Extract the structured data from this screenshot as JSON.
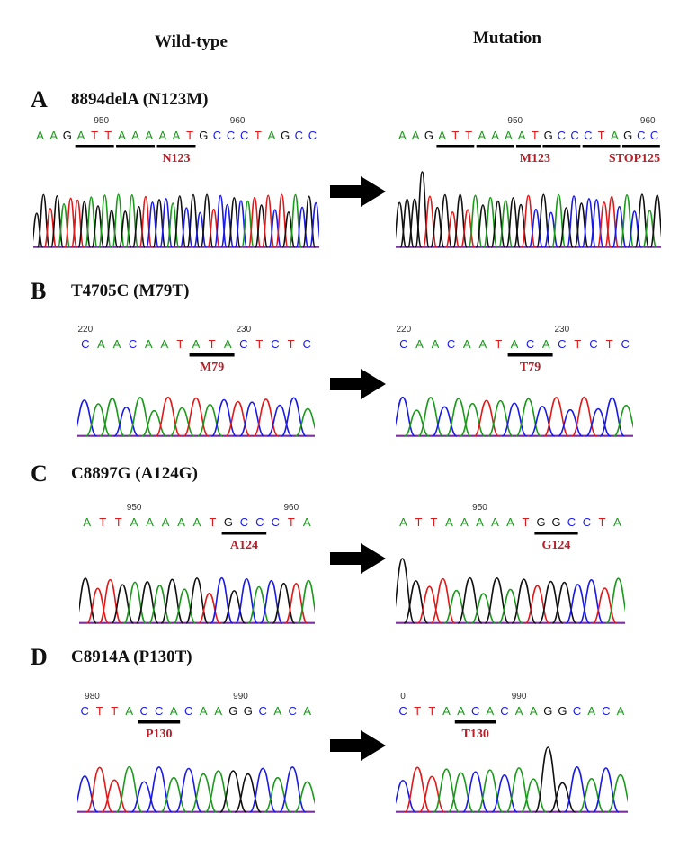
{
  "headers": {
    "left": "Wild-type",
    "right": "Mutation"
  },
  "colors": {
    "A": "#1a9a1a",
    "C": "#1a1ae6",
    "G": "#111111",
    "T": "#e01a1a",
    "label": "#b3202a"
  },
  "panels": [
    {
      "letter": "A",
      "title": "8894delA (N123M)",
      "wt": {
        "seq": "AAGATTAAAAATGCCCTAGCC",
        "ticks": [
          {
            "text": "950",
            "i": 4.5
          },
          {
            "text": "960",
            "i": 14.5
          }
        ],
        "bars": [
          [
            3,
            5
          ],
          [
            6,
            8
          ],
          [
            9,
            11
          ]
        ],
        "labels": [
          {
            "text": "N123",
            "i": 10
          }
        ],
        "peaks": "GGTGATTGAGAGAGAGTCGCAGCGCGTCCGCATGTCTGACGC"
      },
      "mut": {
        "seq": "AAGATTAAAATGCCCTAGCC",
        "ticks": [
          {
            "text": "950",
            "i": 8.5
          },
          {
            "text": "960",
            "i": 18.5
          }
        ],
        "bars": [
          [
            3,
            5
          ],
          [
            6,
            8
          ],
          [
            9,
            10
          ],
          [
            11,
            13
          ],
          [
            14,
            16
          ],
          [
            17,
            19
          ]
        ],
        "labels": [
          {
            "text": "M123",
            "i": 10
          },
          {
            "text": "STOP125",
            "i": 17.5
          }
        ],
        "peaks": "GGGGTGGTGTAGAGAGGTCGCAGCGCCTTCACGAG",
        "tall": [
          3
        ]
      }
    },
    {
      "letter": "B",
      "title": "T4705C (M79T)",
      "wt": {
        "seq": "CAACAATATACTCTC",
        "ticks": [
          {
            "text": "220",
            "i": 0
          },
          {
            "text": "230",
            "i": 10
          }
        ],
        "bars": [
          [
            7,
            9
          ]
        ],
        "labels": [
          {
            "text": "M79",
            "i": 8
          }
        ],
        "peaks": "CAACAATATACTCTCCA"
      },
      "mut": {
        "seq": "CAACAATACACTCTC",
        "ticks": [
          {
            "text": "220",
            "i": 0
          },
          {
            "text": "230",
            "i": 10
          }
        ],
        "bars": [
          [
            7,
            9
          ]
        ],
        "labels": [
          {
            "text": "T79",
            "i": 8
          }
        ],
        "peaks": "CAACAATACACTCTCCA"
      }
    },
    {
      "letter": "C",
      "title": "C8897G (A124G)",
      "wt": {
        "seq": "ATTAAAAATGCCCTA",
        "ticks": [
          {
            "text": "950",
            "i": 3
          },
          {
            "text": "960",
            "i": 13
          }
        ],
        "bars": [
          [
            9,
            11
          ]
        ],
        "labels": [
          {
            "text": "A124",
            "i": 10
          }
        ],
        "peaks": "GTTGAGAGAGTCGCACGTA"
      },
      "mut": {
        "seq": "ATTAAAAATGGCCTA",
        "ticks": [
          {
            "text": "950",
            "i": 5
          }
        ],
        "bars": [
          [
            9,
            11
          ]
        ],
        "labels": [
          {
            "text": "G124",
            "i": 10
          }
        ],
        "peaks": "GGTTAGAGAGTGGCCTA",
        "tall": [
          0
        ]
      }
    },
    {
      "letter": "D",
      "title": "C8914A (P130T)",
      "wt": {
        "seq": "CTTACCACAAGGCACA",
        "ticks": [
          {
            "text": "980",
            "i": 0.5
          },
          {
            "text": "990",
            "i": 10.5
          }
        ],
        "bars": [
          [
            4,
            6
          ]
        ],
        "labels": [
          {
            "text": "P130",
            "i": 5
          }
        ],
        "peaks": "CTTACCACAAGGCACA"
      },
      "mut": {
        "seq": "CTTAACACAAGGCACA",
        "ticks": [
          {
            "text": "0",
            "i": 0
          },
          {
            "text": "990",
            "i": 8
          }
        ],
        "bars": [
          [
            4,
            6
          ]
        ],
        "labels": [
          {
            "text": "T130",
            "i": 5
          }
        ],
        "peaks": "CTTAACACAAGGCACA",
        "tall": [
          10
        ]
      }
    }
  ]
}
